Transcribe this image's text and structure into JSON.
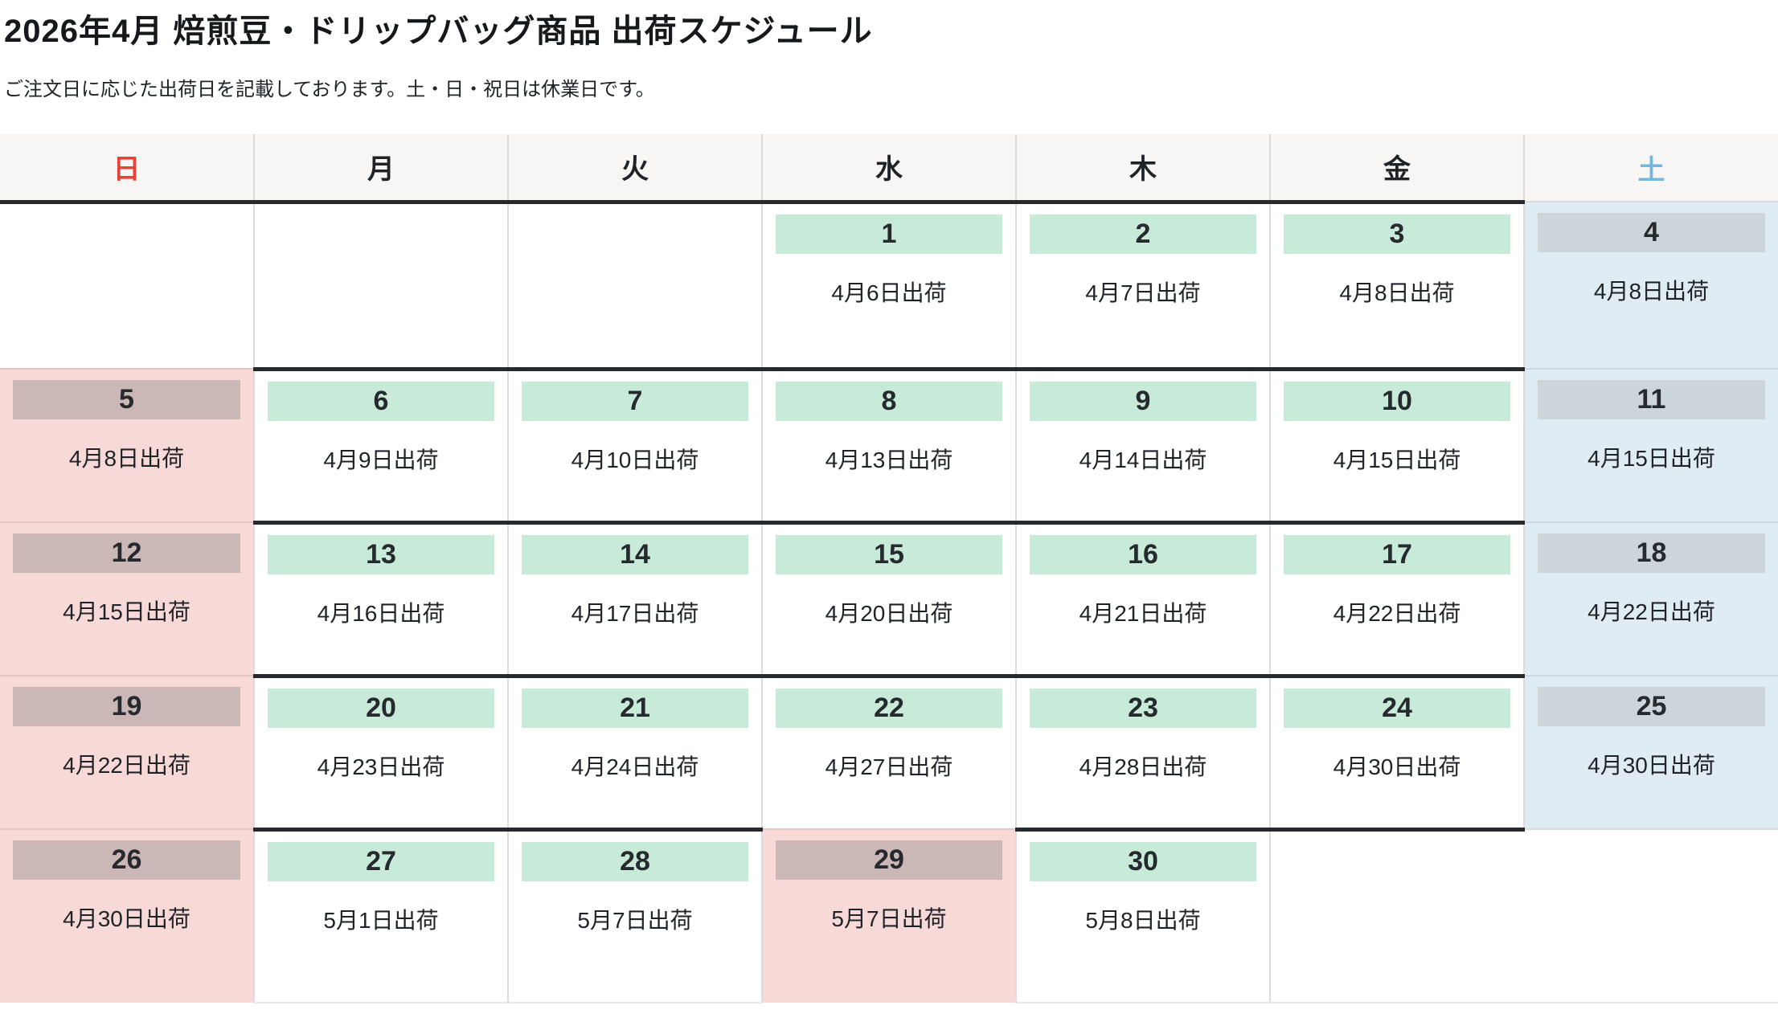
{
  "page": {
    "title": "2026年4月 焙煎豆・ドリップバッグ商品 出荷スケジュール",
    "subtitle": "ご注文日に応じた出荷日を記載しております。土・日・祝日は休業日です。"
  },
  "colors": {
    "sunday_header_text": "#e8413a",
    "saturday_header_text": "#74b7dc",
    "weekday_badge": "#c8ebd9",
    "sunday_holiday_cell": "#f7d9d7",
    "sunday_holiday_badge": "#cbb8b6",
    "saturday_cell": "#dfecf3",
    "saturday_badge": "#ccd5da",
    "header_background": "#f7f6f4",
    "dark_border": "#26292d"
  },
  "calendar": {
    "weekday_headers": [
      {
        "label": "日"
      },
      {
        "label": "月"
      },
      {
        "label": "火"
      },
      {
        "label": "水"
      },
      {
        "label": "木"
      },
      {
        "label": "金"
      },
      {
        "label": "土"
      }
    ],
    "weeks": [
      [
        {
          "type": "empty",
          "day": "",
          "ship": ""
        },
        {
          "type": "empty",
          "day": "",
          "ship": ""
        },
        {
          "type": "empty",
          "day": "",
          "ship": ""
        },
        {
          "type": "week",
          "day": "1",
          "ship": "4月6日出荷"
        },
        {
          "type": "week",
          "day": "2",
          "ship": "4月7日出荷"
        },
        {
          "type": "week",
          "day": "3",
          "ship": "4月8日出荷"
        },
        {
          "type": "sat",
          "day": "4",
          "ship": "4月8日出荷"
        }
      ],
      [
        {
          "type": "sun",
          "day": "5",
          "ship": "4月8日出荷"
        },
        {
          "type": "week",
          "day": "6",
          "ship": "4月9日出荷"
        },
        {
          "type": "week",
          "day": "7",
          "ship": "4月10日出荷"
        },
        {
          "type": "week",
          "day": "8",
          "ship": "4月13日出荷"
        },
        {
          "type": "week",
          "day": "9",
          "ship": "4月14日出荷"
        },
        {
          "type": "week",
          "day": "10",
          "ship": "4月15日出荷"
        },
        {
          "type": "sat",
          "day": "11",
          "ship": "4月15日出荷"
        }
      ],
      [
        {
          "type": "sun",
          "day": "12",
          "ship": "4月15日出荷"
        },
        {
          "type": "week",
          "day": "13",
          "ship": "4月16日出荷"
        },
        {
          "type": "week",
          "day": "14",
          "ship": "4月17日出荷"
        },
        {
          "type": "week",
          "day": "15",
          "ship": "4月20日出荷"
        },
        {
          "type": "week",
          "day": "16",
          "ship": "4月21日出荷"
        },
        {
          "type": "week",
          "day": "17",
          "ship": "4月22日出荷"
        },
        {
          "type": "sat",
          "day": "18",
          "ship": "4月22日出荷"
        }
      ],
      [
        {
          "type": "sun",
          "day": "19",
          "ship": "4月22日出荷"
        },
        {
          "type": "week",
          "day": "20",
          "ship": "4月23日出荷"
        },
        {
          "type": "week",
          "day": "21",
          "ship": "4月24日出荷"
        },
        {
          "type": "week",
          "day": "22",
          "ship": "4月27日出荷"
        },
        {
          "type": "week",
          "day": "23",
          "ship": "4月28日出荷"
        },
        {
          "type": "week",
          "day": "24",
          "ship": "4月30日出荷"
        },
        {
          "type": "sat",
          "day": "25",
          "ship": "4月30日出荷"
        }
      ],
      [
        {
          "type": "sun",
          "day": "26",
          "ship": "4月30日出荷"
        },
        {
          "type": "week",
          "day": "27",
          "ship": "5月1日出荷"
        },
        {
          "type": "week",
          "day": "28",
          "ship": "5月7日出荷"
        },
        {
          "type": "hol",
          "day": "29",
          "ship": "5月7日出荷"
        },
        {
          "type": "week",
          "day": "30",
          "ship": "5月8日出荷"
        },
        {
          "type": "empty",
          "day": "",
          "ship": ""
        },
        {
          "type": "esat",
          "day": "",
          "ship": ""
        }
      ]
    ]
  }
}
